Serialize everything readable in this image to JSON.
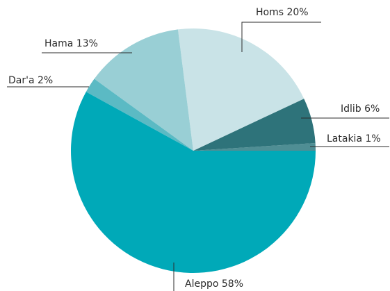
{
  "chart_data": {
    "type": "pie",
    "categories": [
      "Latakia",
      "Idlib",
      "Homs",
      "Hama",
      "Dar'a",
      "Aleppo"
    ],
    "values": [
      1,
      6,
      20,
      13,
      2,
      58
    ],
    "value_labels": [
      "1%",
      "6%",
      "20%",
      "13%",
      "2%",
      "58%"
    ],
    "colors": [
      "#4f8e94",
      "#2e737a",
      "#c9e3e7",
      "#99cfd5",
      "#5bbac4",
      "#00a9b8"
    ]
  }
}
